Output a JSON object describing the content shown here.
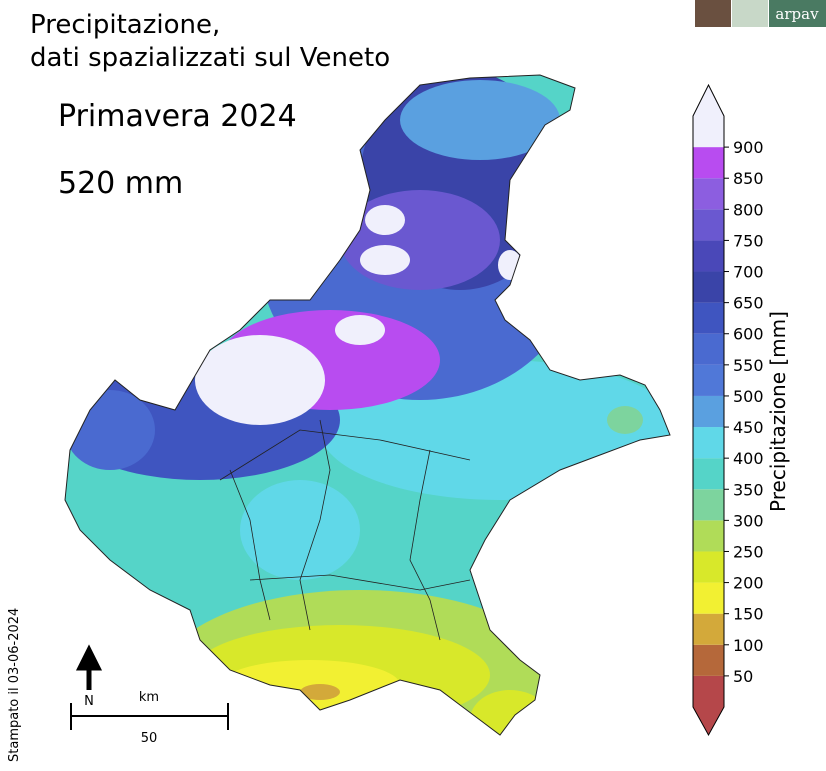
{
  "header": {
    "title_line1": "Precipitazione,",
    "title_line2": "dati spazializzati sul Veneto",
    "logo_text": "arpav"
  },
  "summary": {
    "period": "Primavera 2024",
    "total": "520 mm"
  },
  "colorbar": {
    "label": "Precipitazione [mm]",
    "range": [
      0,
      950
    ],
    "ticks": [
      50,
      100,
      150,
      200,
      250,
      300,
      350,
      400,
      450,
      500,
      550,
      600,
      650,
      700,
      750,
      800,
      850,
      900
    ],
    "colors": [
      "#b5474a",
      "#b5683a",
      "#d3a93a",
      "#f2f032",
      "#d8e82a",
      "#b0dc58",
      "#7dd49e",
      "#55d4c8",
      "#60d8e8",
      "#5aa0e0",
      "#5078d8",
      "#4a6ad0",
      "#3f55c0",
      "#3a44a8",
      "#4a48b8",
      "#6a58d0",
      "#8c5ee0",
      "#b84cf0",
      "#f0f0fc"
    ],
    "under_color": "#b5474a",
    "over_color": "#f0f0fc"
  },
  "scalebar": {
    "north": "N",
    "unit": "km",
    "length": "50"
  },
  "footer": {
    "stamp": "Stampato il 03-06-2024"
  }
}
